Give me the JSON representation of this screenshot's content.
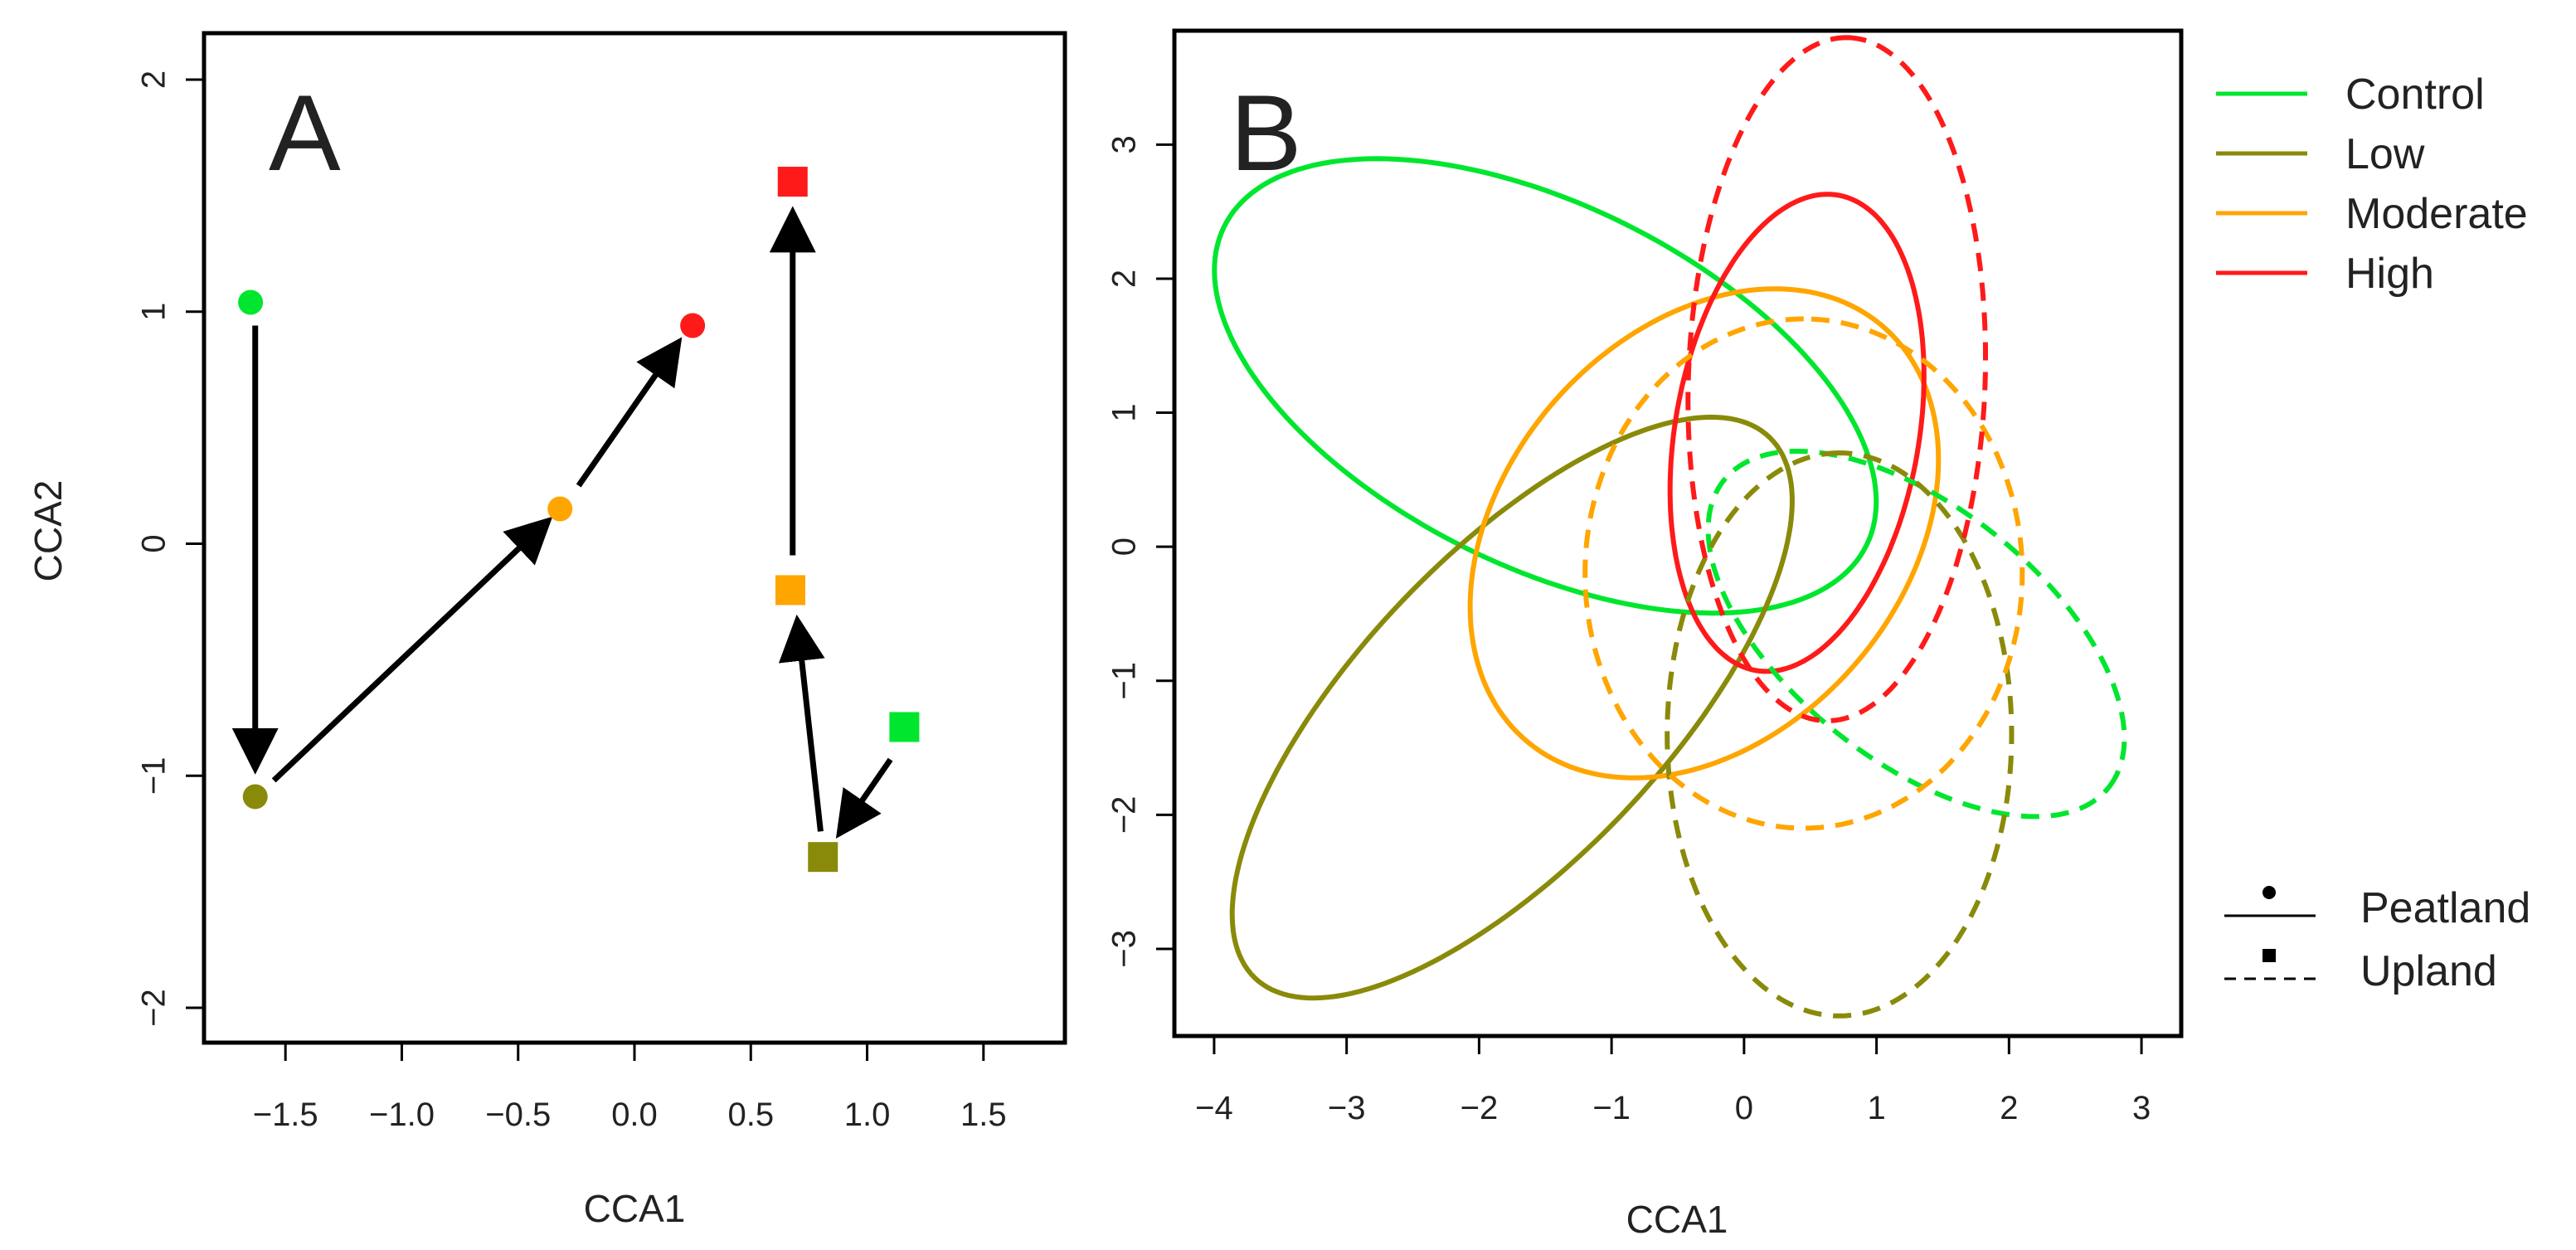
{
  "chart_data": [
    {
      "type": "scatter",
      "panel_label": "A",
      "xlabel": "CCA1",
      "ylabel": "CCA2",
      "xlim": [
        -1.85,
        1.85
      ],
      "ylim": [
        -2.15,
        2.2
      ],
      "xticks": [
        {
          "value": -1.5,
          "label": "−1.5"
        },
        {
          "value": -1.0,
          "label": "−1.0"
        },
        {
          "value": -0.5,
          "label": "−0.5"
        },
        {
          "value": 0.0,
          "label": "0.0"
        },
        {
          "value": 0.5,
          "label": "0.5"
        },
        {
          "value": 1.0,
          "label": "1.0"
        },
        {
          "value": 1.5,
          "label": "1.5"
        }
      ],
      "yticks": [
        {
          "value": -2,
          "label": "−2"
        },
        {
          "value": -1,
          "label": "−1"
        },
        {
          "value": 0,
          "label": "0"
        },
        {
          "value": 1,
          "label": "1"
        },
        {
          "value": 2,
          "label": "2"
        }
      ],
      "grid": false,
      "points": [
        {
          "habitat": "Peatland",
          "level": "Control",
          "x": -1.65,
          "y": 1.04
        },
        {
          "habitat": "Peatland",
          "level": "Low",
          "x": -1.63,
          "y": -1.09
        },
        {
          "habitat": "Peatland",
          "level": "Moderate",
          "x": -0.32,
          "y": 0.15
        },
        {
          "habitat": "Peatland",
          "level": "High",
          "x": 0.25,
          "y": 0.94
        },
        {
          "habitat": "Upland",
          "level": "Control",
          "x": 1.16,
          "y": -0.79
        },
        {
          "habitat": "Upland",
          "level": "Low",
          "x": 0.81,
          "y": -1.35
        },
        {
          "habitat": "Upland",
          "level": "Moderate",
          "x": 0.67,
          "y": -0.2
        },
        {
          "habitat": "Upland",
          "level": "High",
          "x": 0.68,
          "y": 1.56
        }
      ],
      "arrows": [
        {
          "from": [
            -1.63,
            0.94
          ],
          "to": [
            -1.63,
            -0.97
          ]
        },
        {
          "from": [
            -1.55,
            -1.02
          ],
          "to": [
            -0.37,
            0.1
          ]
        },
        {
          "from": [
            -0.24,
            0.25
          ],
          "to": [
            0.19,
            0.87
          ]
        },
        {
          "from": [
            1.1,
            -0.93
          ],
          "to": [
            0.88,
            -1.25
          ]
        },
        {
          "from": [
            0.8,
            -1.24
          ],
          "to": [
            0.7,
            -0.33
          ]
        },
        {
          "from": [
            0.68,
            -0.05
          ],
          "to": [
            0.68,
            1.43
          ]
        }
      ]
    },
    {
      "type": "ellipse",
      "panel_label": "B",
      "xlabel": "CCA1",
      "ylabel": "",
      "xlim": [
        -4.3,
        3.3
      ],
      "ylim": [
        -3.65,
        3.85
      ],
      "xticks": [
        {
          "value": -4,
          "label": "−4"
        },
        {
          "value": -3,
          "label": "−3"
        },
        {
          "value": -2,
          "label": "−2"
        },
        {
          "value": -1,
          "label": "−1"
        },
        {
          "value": 0,
          "label": "0"
        },
        {
          "value": 1,
          "label": "1"
        },
        {
          "value": 2,
          "label": "2"
        },
        {
          "value": 3,
          "label": "3"
        }
      ],
      "yticks": [
        {
          "value": -3,
          "label": "−3"
        },
        {
          "value": -2,
          "label": "−2"
        },
        {
          "value": -1,
          "label": "−1"
        },
        {
          "value": 0,
          "label": "0"
        },
        {
          "value": 1,
          "label": "1"
        },
        {
          "value": 2,
          "label": "2"
        },
        {
          "value": 3,
          "label": "3"
        }
      ],
      "grid": false,
      "ellipses": [
        {
          "habitat": "Peatland",
          "level": "Control",
          "cx": -1.5,
          "cy": 1.2,
          "a": 2.7,
          "b": 1.35,
          "angle_deg": -26
        },
        {
          "habitat": "Peatland",
          "level": "Low",
          "cx": -1.75,
          "cy": -1.2,
          "a": 2.8,
          "b": 1.15,
          "angle_deg": 46
        },
        {
          "habitat": "Peatland",
          "level": "Moderate",
          "cx": -0.3,
          "cy": 0.1,
          "a": 2.05,
          "b": 1.5,
          "angle_deg": 48
        },
        {
          "habitat": "Peatland",
          "level": "High",
          "cx": 0.4,
          "cy": 0.85,
          "a": 1.8,
          "b": 0.92,
          "angle_deg": 80
        },
        {
          "habitat": "Upland",
          "level": "Control",
          "cx": 1.3,
          "cy": -0.65,
          "a": 1.85,
          "b": 0.95,
          "angle_deg": -38
        },
        {
          "habitat": "Upland",
          "level": "Low",
          "cx": 0.72,
          "cy": -1.4,
          "a": 2.1,
          "b": 1.3,
          "angle_deg": 90
        },
        {
          "habitat": "Upland",
          "level": "Moderate",
          "cx": 0.45,
          "cy": -0.2,
          "a": 1.9,
          "b": 1.65,
          "angle_deg": 90
        },
        {
          "habitat": "Upland",
          "level": "High",
          "cx": 0.7,
          "cy": 1.25,
          "a": 2.55,
          "b": 1.12,
          "angle_deg": 88
        }
      ]
    }
  ],
  "legend": {
    "placement": "right",
    "levels": [
      {
        "name": "Control",
        "color": "#00e62e"
      },
      {
        "name": "Low",
        "color": "#8a8a0a"
      },
      {
        "name": "Moderate",
        "color": "#ffa500"
      },
      {
        "name": "High",
        "color": "#ff1a1a"
      }
    ],
    "habitats": [
      {
        "name": "Peatland",
        "marker": "circle",
        "line": "solid"
      },
      {
        "name": "Upland",
        "marker": "square",
        "line": "dashed"
      }
    ]
  }
}
